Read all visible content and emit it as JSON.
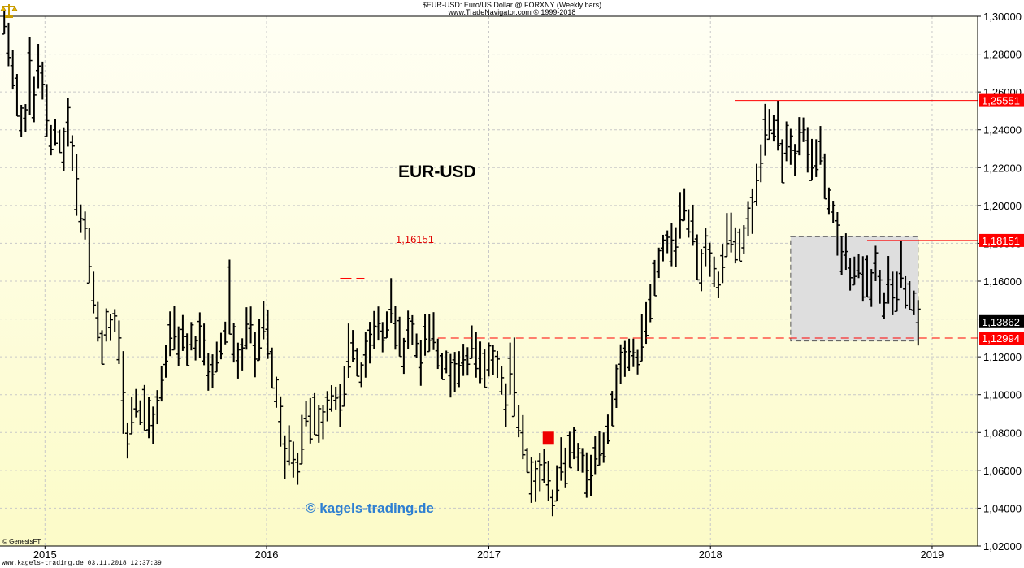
{
  "header": {
    "line1": "$EUR-USD:  Euro/US Dollar @ FORXNY  (Weekly bars)",
    "line2": "www.TradeNavigator.com © 1999-2018"
  },
  "footer": "www.kagels-trading.de    03.11.2018 12:37:39",
  "copyright": "© GenesisFT",
  "watermark": "© kagels-trading.de",
  "logo_icon": "scales-icon",
  "colors": {
    "background_top": "#fffff4",
    "background_bottom": "#fcfbc8",
    "bars": "#000000",
    "resistance": "#ff0000",
    "range_box": "#dedede",
    "price_badge": "#000000"
  },
  "chart_data": {
    "type": "ohlc",
    "title": "EUR-USD",
    "ylim": [
      1.02,
      1.3
    ],
    "y_ticks": [
      "1,30000",
      "1,28000",
      "1,26000",
      "1,24000",
      "1,22000",
      "1,20000",
      "1,18000",
      "1,16000",
      "1,14000",
      "1,12000",
      "1,10000",
      "1,08000",
      "1,06000",
      "1,04000",
      "1,02000"
    ],
    "x_ticks": [
      "2015",
      "2016",
      "2017",
      "2018",
      "2019"
    ],
    "grid": true,
    "price_scale_side": "right",
    "x_range": [
      "2014-10-19",
      "2019-03-17"
    ],
    "bars": {
      "start": "2014-10-26",
      "interval": "weekly",
      "highs": [
        1.3039,
        1.2966,
        1.2823,
        1.2695,
        1.2532,
        1.2536,
        1.289,
        1.268,
        1.2854,
        1.276,
        1.2642,
        1.2425,
        1.2455,
        1.24,
        1.2413,
        1.2569,
        1.2371,
        1.2273,
        1.2005,
        1.1968,
        1.188,
        1.165,
        1.149,
        1.1341,
        1.1456,
        1.1424,
        1.1452,
        1.1392,
        1.123,
        1.0853,
        1.099,
        1.103,
        1.097,
        1.1051,
        1.099,
        1.0937,
        1.1024,
        1.115,
        1.1264,
        1.144,
        1.1467,
        1.1361,
        1.1421,
        1.1324,
        1.1384,
        1.1311,
        1.1435,
        1.1376,
        1.1221,
        1.1213,
        1.128,
        1.1327,
        1.1386,
        1.1714,
        1.138,
        1.1275,
        1.1298,
        1.1462,
        1.1466,
        1.1332,
        1.1401,
        1.1493,
        1.145,
        1.1249,
        1.1095,
        1.0991,
        1.0785,
        1.0838,
        1.0752,
        1.0694,
        1.0893,
        1.0967,
        1.0982,
        1.1008,
        1.0946,
        1.0945,
        1.1019,
        1.105,
        1.1042,
        1.1057,
        1.1149,
        1.1376,
        1.1342,
        1.1247,
        1.117,
        1.133,
        1.1385,
        1.1442,
        1.1466,
        1.1384,
        1.144,
        1.1616,
        1.1468,
        1.1412,
        1.13,
        1.1444,
        1.142,
        1.1323,
        1.1287,
        1.1426,
        1.1428,
        1.1436,
        1.1296,
        1.122,
        1.1233,
        1.1215,
        1.1226,
        1.123,
        1.1269,
        1.1251,
        1.1366,
        1.133,
        1.1281,
        1.1239,
        1.1276,
        1.1263,
        1.1231,
        1.1149,
        1.106,
        1.1275,
        1.1302,
        1.0945,
        1.0892,
        1.0719,
        1.0668,
        1.0653,
        1.069,
        1.0711,
        1.0651,
        1.0498,
        1.0627,
        1.0775,
        1.072,
        1.0804,
        1.0829,
        1.0745,
        1.0718,
        1.0695,
        1.0682,
        1.078,
        1.0807,
        1.08,
        1.0895,
        1.102,
        1.116,
        1.1266,
        1.1284,
        1.1296,
        1.1296,
        1.1237,
        1.1426,
        1.1489,
        1.1583,
        1.1712,
        1.1777,
        1.1845,
        1.1868,
        1.1909,
        1.1885,
        1.2071,
        1.2091,
        1.198,
        1.2004,
        1.1847,
        1.1767,
        1.1879,
        1.1803,
        1.173,
        1.165,
        1.1797,
        1.196,
        1.1962,
        1.1884,
        1.1876,
        1.1896,
        1.2023,
        1.209,
        1.222,
        1.2323,
        1.2537,
        1.251,
        1.2478,
        1.2555,
        1.235,
        1.2444,
        1.2405,
        1.2325,
        1.2467,
        1.2465,
        1.2414,
        1.2352,
        1.235,
        1.242,
        1.2275,
        1.2095,
        1.2025,
        1.1965,
        1.184,
        1.1853,
        1.172,
        1.173,
        1.1746,
        1.1732,
        1.1736,
        1.1664,
        1.1787,
        1.166,
        1.1541,
        1.1733,
        1.165,
        1.165,
        1.1815,
        1.1626,
        1.16,
        1.155,
        1.15
      ]
    },
    "overlay_dates": {
      "box_range": [
        "2018-05-13",
        "2018-12-09"
      ],
      "resistance_1_start": "2018-02-11",
      "resistance_2_start": "2018-09-16",
      "support_start": "2016-10-09",
      "peak_1_16151": "2016-05-01",
      "signal": "2017-04-09",
      "plot_end": "2019-03-17"
    },
    "annotations": {
      "resistance_1": {
        "value": 1.25551,
        "label": "1,25551"
      },
      "resistance_2": {
        "value": 1.18151,
        "label": "1,18151"
      },
      "support": {
        "value": 1.12994,
        "label": "1,12994"
      },
      "current_price": {
        "value": 1.13862,
        "label": "1,13862"
      },
      "peak": {
        "value": 1.16151,
        "label": "1,16151"
      },
      "range_box": [
        1.1284,
        1.1835
      ],
      "signal_marker": 1.077
    }
  }
}
